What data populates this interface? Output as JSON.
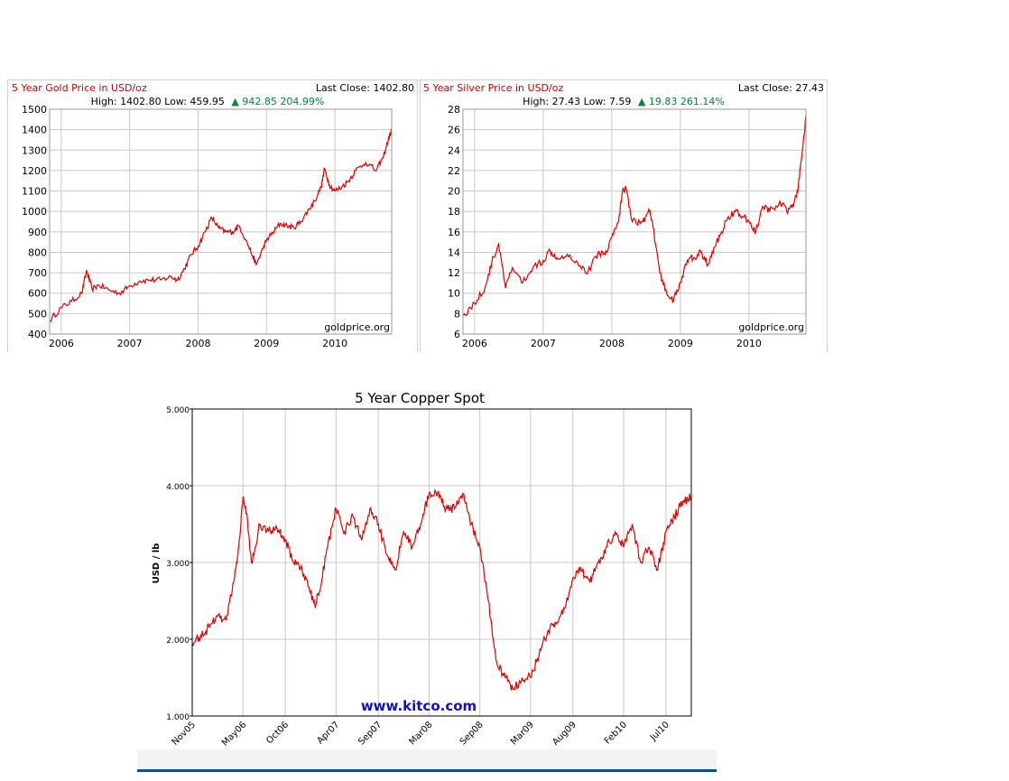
{
  "chart_data": [
    {
      "type": "line",
      "title": "5 Year Gold Price in USD/oz",
      "last_close_text": "Last Close: 1402.80",
      "stats_prefix": "High: 1402.80 Low: 459.95",
      "change_text": "942.85 204.99%",
      "watermark": "goldprice.org",
      "xticks": [
        {
          "label": "2006",
          "x": 2006.0
        },
        {
          "label": "2007",
          "x": 2007.0
        },
        {
          "label": "2008",
          "x": 2008.0
        },
        {
          "label": "2009",
          "x": 2009.0
        },
        {
          "label": "2010",
          "x": 2010.0
        }
      ],
      "yticks": [
        "400",
        "500",
        "600",
        "700",
        "800",
        "900",
        "1000",
        "1100",
        "1200",
        "1300",
        "1400",
        "1500"
      ],
      "xlim": [
        2005.83,
        2010.83
      ],
      "ylim": [
        400,
        1500
      ],
      "grid": true,
      "colors": {
        "line": "#e00000",
        "title": "#cc0000",
        "change": "#008833",
        "grid": "#c8c8c8"
      },
      "series": [
        {
          "x": [
            2005.83,
            2006.0,
            2006.15,
            2006.3,
            2006.37,
            2006.45,
            2006.55,
            2006.7,
            2006.85,
            2007.0,
            2007.15,
            2007.3,
            2007.45,
            2007.6,
            2007.7,
            2007.8,
            2007.9,
            2008.0,
            2008.1,
            2008.2,
            2008.3,
            2008.4,
            2008.5,
            2008.6,
            2008.7,
            2008.8,
            2008.85,
            2008.95,
            2009.0,
            2009.1,
            2009.2,
            2009.3,
            2009.4,
            2009.5,
            2009.6,
            2009.7,
            2009.8,
            2009.85,
            2009.92,
            2010.0,
            2010.1,
            2010.2,
            2010.3,
            2010.45,
            2010.6,
            2010.7,
            2010.78,
            2010.83
          ],
          "y": [
            465,
            530,
            560,
            600,
            710,
            620,
            640,
            615,
            600,
            635,
            660,
            665,
            665,
            680,
            665,
            720,
            790,
            830,
            900,
            970,
            920,
            900,
            900,
            930,
            860,
            780,
            740,
            820,
            860,
            900,
            940,
            930,
            920,
            950,
            1000,
            1050,
            1120,
            1210,
            1130,
            1100,
            1120,
            1150,
            1200,
            1240,
            1200,
            1260,
            1350,
            1400
          ]
        }
      ]
    },
    {
      "type": "line",
      "title": "5 Year Silver Price in USD/oz",
      "last_close_text": "Last Close: 27.43",
      "stats_prefix": "High: 27.43 Low: 7.59",
      "change_text": "19.83 261.14%",
      "watermark": "goldprice.org",
      "xticks": [
        {
          "label": "2006",
          "x": 2006.0
        },
        {
          "label": "2007",
          "x": 2007.0
        },
        {
          "label": "2008",
          "x": 2008.0
        },
        {
          "label": "2009",
          "x": 2009.0
        },
        {
          "label": "2010",
          "x": 2010.0
        }
      ],
      "yticks": [
        "6",
        "8",
        "10",
        "12",
        "14",
        "16",
        "18",
        "20",
        "22",
        "24",
        "26",
        "28"
      ],
      "xlim": [
        2005.83,
        2010.83
      ],
      "ylim": [
        6,
        28
      ],
      "grid": true,
      "colors": {
        "line": "#e00000",
        "title": "#cc0000",
        "change": "#008833",
        "grid": "#c8c8c8"
      },
      "series": [
        {
          "x": [
            2005.83,
            2006.0,
            2006.15,
            2006.25,
            2006.35,
            2006.45,
            2006.55,
            2006.7,
            2006.85,
            2007.0,
            2007.1,
            2007.2,
            2007.35,
            2007.5,
            2007.65,
            2007.8,
            2007.9,
            2008.0,
            2008.1,
            2008.15,
            2008.2,
            2008.3,
            2008.45,
            2008.55,
            2008.6,
            2008.7,
            2008.8,
            2008.9,
            2009.0,
            2009.1,
            2009.2,
            2009.3,
            2009.4,
            2009.5,
            2009.6,
            2009.7,
            2009.8,
            2009.9,
            2010.0,
            2010.1,
            2010.2,
            2010.3,
            2010.45,
            2010.55,
            2010.65,
            2010.72,
            2010.78,
            2010.83
          ],
          "y": [
            7.8,
            9.0,
            10.5,
            13.0,
            14.8,
            10.5,
            12.5,
            11.0,
            12.5,
            13.2,
            14.2,
            13.5,
            13.8,
            13.0,
            12.0,
            14.0,
            13.8,
            15.5,
            17.0,
            19.8,
            20.5,
            17.0,
            17.0,
            18.0,
            16.5,
            12.0,
            10.0,
            9.3,
            11.0,
            13.2,
            13.5,
            14.0,
            12.8,
            14.5,
            16.0,
            17.5,
            18.0,
            17.5,
            17.0,
            16.0,
            18.5,
            18.0,
            19.0,
            18.0,
            18.5,
            20.5,
            24.0,
            27.4
          ]
        }
      ]
    },
    {
      "type": "line",
      "title": "5 Year Copper Spot",
      "ylabel": "USD / lb",
      "watermark": "www.kitco.com",
      "xticks": [
        {
          "label": "Nov05",
          "x": 0
        },
        {
          "label": "May06",
          "x": 6
        },
        {
          "label": "Oct06",
          "x": 11
        },
        {
          "label": "Apr07",
          "x": 17
        },
        {
          "label": "Sep07",
          "x": 22
        },
        {
          "label": "Mar08",
          "x": 28
        },
        {
          "label": "Sep08",
          "x": 34
        },
        {
          "label": "Mar09",
          "x": 40
        },
        {
          "label": "Aug09",
          "x": 45
        },
        {
          "label": "Feb10",
          "x": 51
        },
        {
          "label": "Jul10",
          "x": 56
        }
      ],
      "yticks": [
        "1.000",
        "2.000",
        "3.000",
        "4.000",
        "5.000"
      ],
      "xlim": [
        0,
        59
      ],
      "ylim": [
        1.0,
        5.0
      ],
      "grid": true,
      "colors": {
        "line": "#e00000",
        "watermark": "#1010cc",
        "grid": "#c8c8c8"
      },
      "series": [
        {
          "x": [
            0,
            1,
            2,
            3,
            4,
            5,
            5.5,
            6,
            6.5,
            7,
            8,
            9,
            10,
            11,
            12,
            13,
            14,
            14.5,
            15,
            16,
            17,
            18,
            19,
            20,
            21,
            22,
            23,
            24,
            25,
            26,
            27,
            28,
            29,
            30,
            31,
            32,
            33,
            34,
            35,
            36,
            37,
            38,
            39,
            40,
            41,
            42,
            43,
            44,
            45,
            46,
            47,
            48,
            49,
            50,
            51,
            52,
            53,
            54,
            55,
            56,
            57,
            58,
            59
          ],
          "y": [
            1.95,
            2.05,
            2.15,
            2.3,
            2.25,
            2.8,
            3.2,
            3.85,
            3.6,
            3.0,
            3.5,
            3.4,
            3.45,
            3.3,
            3.0,
            2.9,
            2.6,
            2.45,
            2.6,
            3.2,
            3.7,
            3.4,
            3.6,
            3.3,
            3.7,
            3.5,
            3.1,
            2.9,
            3.4,
            3.2,
            3.5,
            3.9,
            3.9,
            3.7,
            3.7,
            3.9,
            3.5,
            3.2,
            2.5,
            1.7,
            1.5,
            1.35,
            1.5,
            1.5,
            1.8,
            2.1,
            2.2,
            2.4,
            2.8,
            2.9,
            2.75,
            3.0,
            3.2,
            3.4,
            3.2,
            3.5,
            3.0,
            3.2,
            2.9,
            3.4,
            3.6,
            3.8,
            3.85
          ]
        }
      ]
    }
  ]
}
